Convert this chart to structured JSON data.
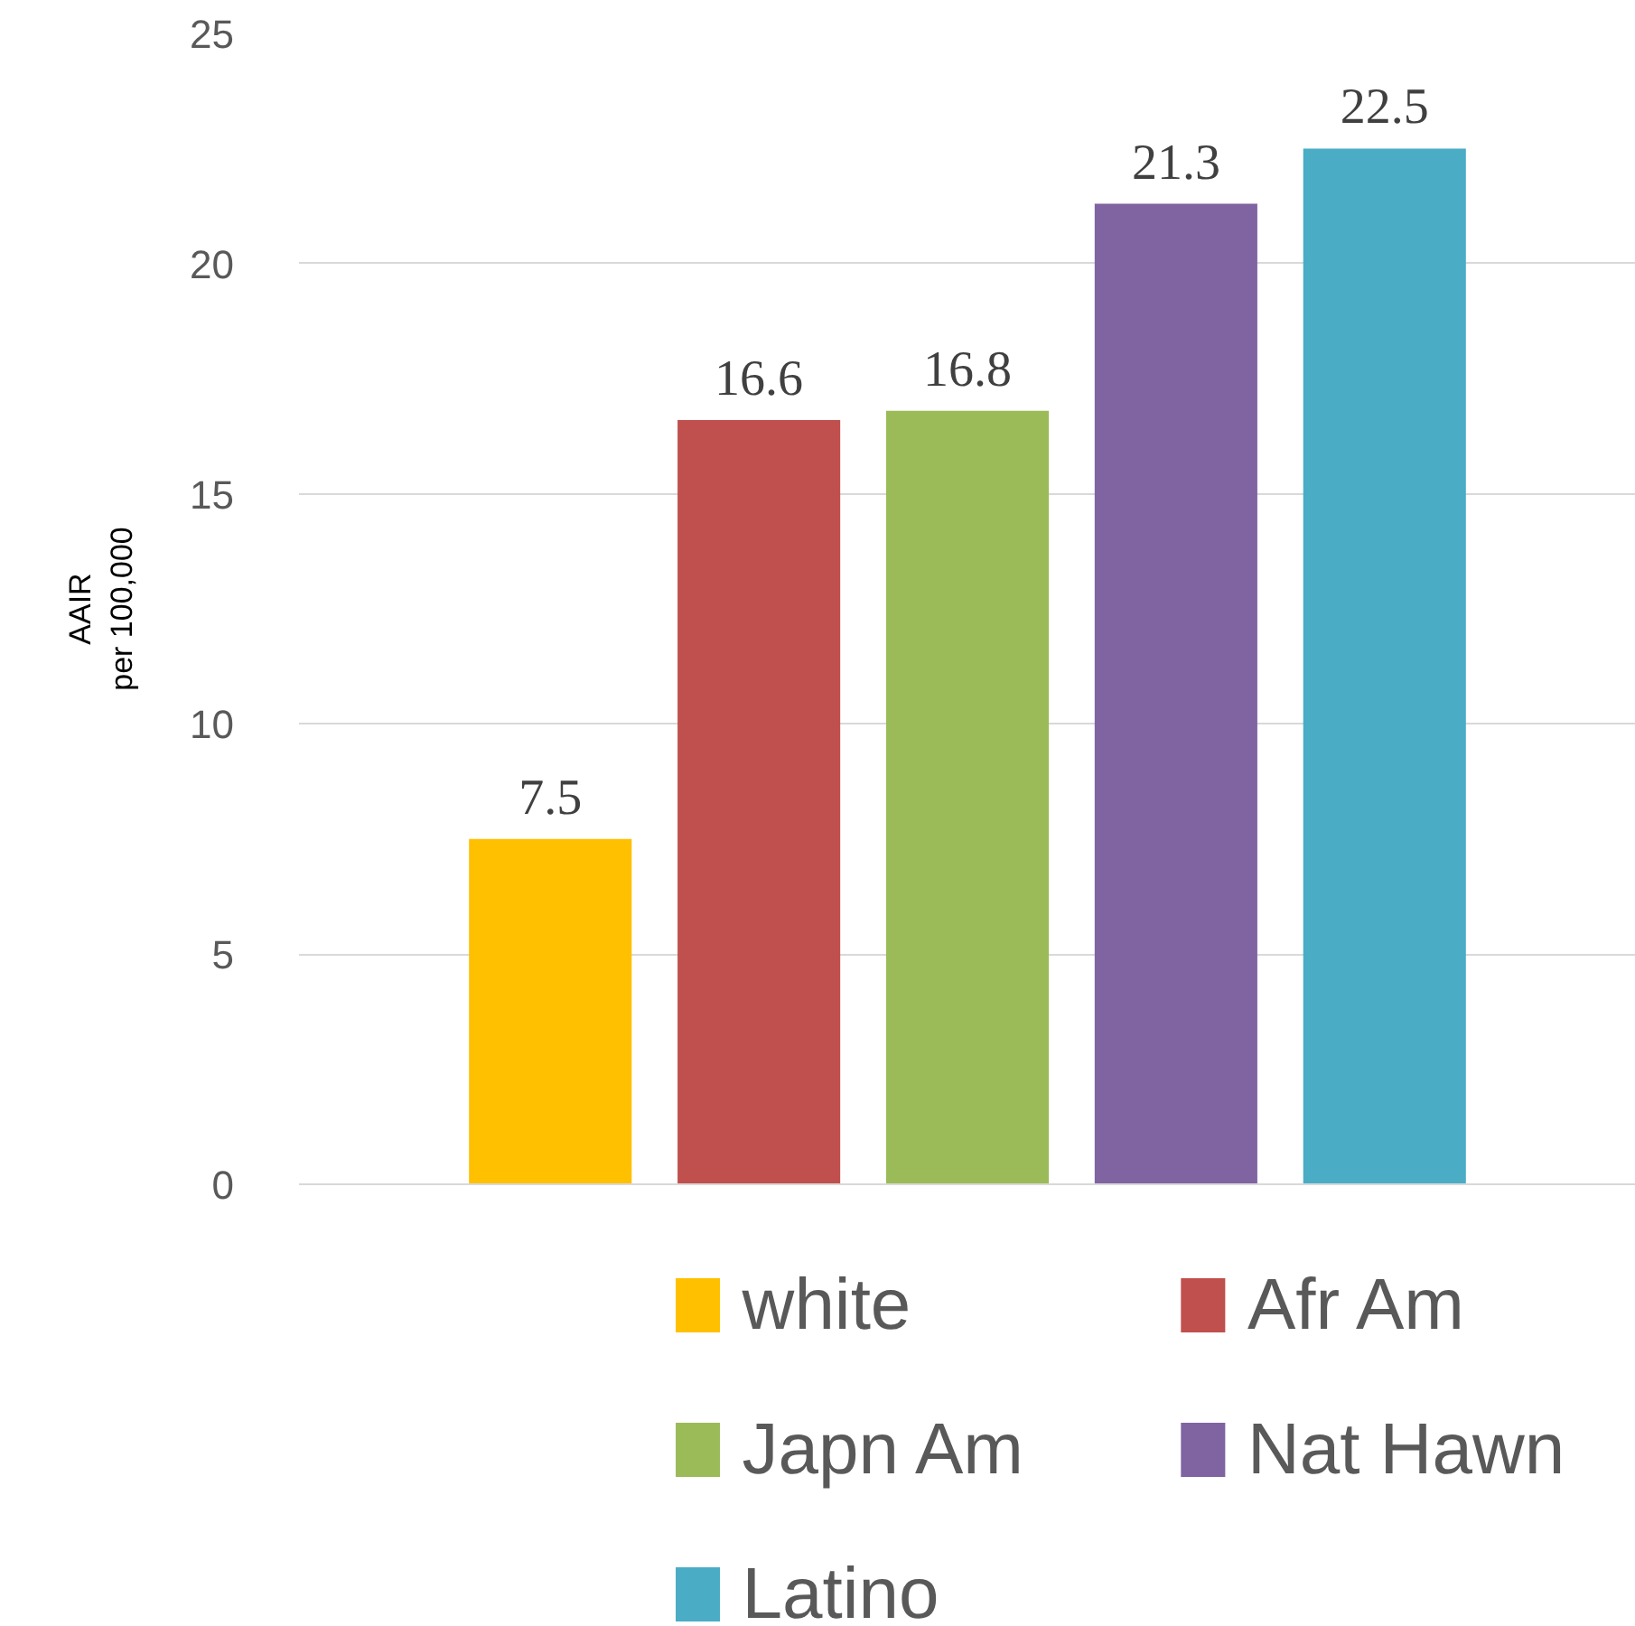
{
  "chart_data": {
    "type": "bar",
    "ylabel": "AAIR\nper 100,000",
    "categories": [
      null
    ],
    "series": [
      {
        "name": "white",
        "color": "#ffc000",
        "values": [
          7.5
        ]
      },
      {
        "name": "Afr Am",
        "color": "#c0504d",
        "values": [
          16.6
        ]
      },
      {
        "name": "Japn Am",
        "color": "#9bbb59",
        "values": [
          16.8
        ]
      },
      {
        "name": "Nat Hawn",
        "color": "#8064a2",
        "values": [
          21.3
        ]
      },
      {
        "name": "Latino",
        "color": "#4bacc6",
        "values": [
          22.5
        ]
      }
    ],
    "ylim": [
      0,
      25
    ],
    "yticks": [
      0,
      5,
      10,
      15,
      20,
      25
    ],
    "grid": "y",
    "legend": "bottom",
    "data_labels": true
  }
}
